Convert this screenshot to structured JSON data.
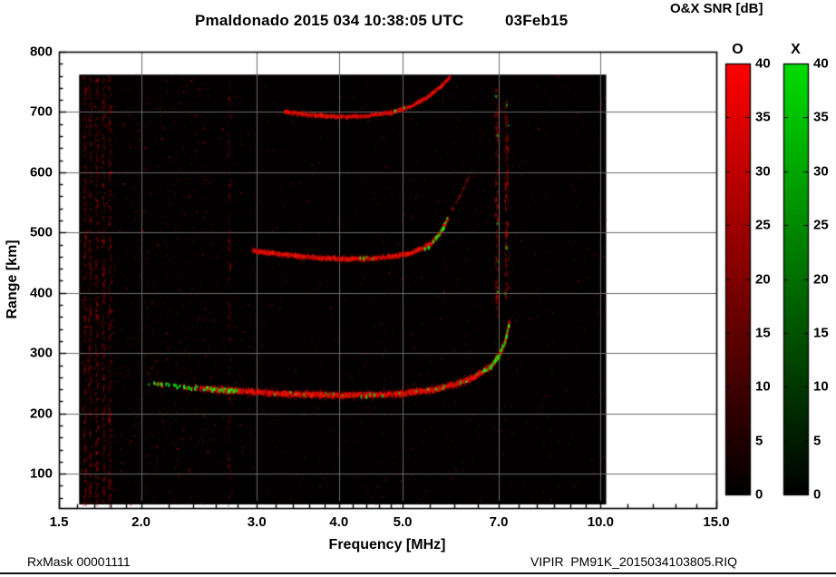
{
  "footer": {
    "left": "RxMask 00001111",
    "right": "VIPIR  PM91K_2015034103805.RIQ"
  },
  "chart_data": {
    "type": "heatmap",
    "title": "Pmaldonado 2015 034 10:38:05 UTC",
    "date_label": "03Feb15",
    "xlabel": "Frequency [MHz]",
    "ylabel": "Range [km]",
    "x_scale": "log",
    "xlim": [
      1.5,
      15.0
    ],
    "ylim": [
      43,
      800
    ],
    "x_ticks": [
      1.5,
      2.0,
      3.0,
      4.0,
      5.0,
      7.0,
      10.0,
      15.0
    ],
    "x_tick_labels": [
      "1.5",
      "2.0",
      "3.0",
      "4.0",
      "5.0",
      "7.0",
      "10.0",
      "15.0"
    ],
    "x_minor_ticks": [
      1.6,
      1.7,
      1.8,
      1.9,
      2.2,
      2.4,
      2.6,
      2.8,
      3.2,
      3.4,
      3.6,
      3.8,
      4.2,
      4.4,
      4.6,
      4.8,
      5.5,
      6.0,
      6.5,
      7.5,
      8.0,
      8.5,
      9.0,
      9.5,
      11.0,
      12.0,
      13.0,
      14.0
    ],
    "y_ticks": [
      100,
      200,
      300,
      400,
      500,
      600,
      700,
      800
    ],
    "grid": true,
    "plot_background": "#020000",
    "data_extent": {
      "freq_mhz": [
        1.61,
        10.2
      ],
      "range_km": [
        49,
        762
      ]
    },
    "colorbar": {
      "title": "O&X SNR [dB]",
      "min": 0,
      "max": 40,
      "ticks": [
        0,
        5,
        10,
        15,
        20,
        25,
        30,
        35,
        40
      ],
      "bars": [
        {
          "label": "O",
          "mode": "ordinary",
          "bottom_color": "#000000",
          "top_color": "#ff0000"
        },
        {
          "label": "X",
          "mode": "extraordinary",
          "bottom_color": "#000000",
          "top_color": "#00dd00"
        }
      ]
    },
    "traces": [
      {
        "name": "F-layer 1-hop echo",
        "approx_snr_db": 35,
        "points": [
          [
            2.05,
            250
          ],
          [
            2.4,
            242
          ],
          [
            2.9,
            236
          ],
          [
            3.4,
            232
          ],
          [
            4.0,
            230
          ],
          [
            4.6,
            231
          ],
          [
            5.1,
            234
          ],
          [
            5.6,
            240
          ],
          [
            6.0,
            248
          ],
          [
            6.4,
            260
          ],
          [
            6.8,
            278
          ],
          [
            7.0,
            297
          ],
          [
            7.15,
            320
          ],
          [
            7.25,
            352
          ]
        ]
      },
      {
        "name": "F-layer 2-hop echo",
        "approx_snr_db": 30,
        "points": [
          [
            2.95,
            470
          ],
          [
            3.3,
            463
          ],
          [
            3.7,
            458
          ],
          [
            4.1,
            456
          ],
          [
            4.5,
            457
          ],
          [
            4.9,
            461
          ],
          [
            5.2,
            468
          ],
          [
            5.5,
            480
          ],
          [
            5.7,
            500
          ],
          [
            5.85,
            525
          ]
        ]
      },
      {
        "name": "F-layer 3-hop echo",
        "approx_snr_db": 25,
        "points": [
          [
            3.3,
            700
          ],
          [
            3.6,
            695
          ],
          [
            4.0,
            692
          ],
          [
            4.4,
            693
          ],
          [
            4.8,
            699
          ],
          [
            5.1,
            708
          ],
          [
            5.4,
            722
          ],
          [
            5.7,
            742
          ],
          [
            5.9,
            758
          ]
        ]
      },
      {
        "name": "faint echo above 2-hop cusp",
        "approx_snr_db": 8,
        "points": [
          [
            5.9,
            535
          ],
          [
            6.1,
            560
          ],
          [
            6.3,
            595
          ]
        ]
      }
    ],
    "critical_frequency_mhz": 7.3,
    "rfi_columns_mhz": [
      1.64,
      1.67,
      1.71,
      1.75,
      1.79,
      2.72
    ],
    "spread_streaks": [
      {
        "freq_mhz": 6.95,
        "range_km": [
          360,
          750
        ]
      },
      {
        "freq_mhz": 7.18,
        "range_km": [
          390,
          730
        ]
      }
    ],
    "green_segments": [
      {
        "trace": 0,
        "freq_range": [
          2.0,
          2.8
        ],
        "density": "dense"
      },
      {
        "trace": 0,
        "freq_range": [
          3.0,
          6.5
        ],
        "density": "sparse"
      },
      {
        "trace": 0,
        "freq_range": [
          6.55,
          7.3
        ],
        "density": "dense"
      },
      {
        "trace": 1,
        "freq_range": [
          4.2,
          4.7
        ],
        "density": "sparse"
      },
      {
        "trace": 1,
        "freq_range": [
          5.35,
          5.9
        ],
        "density": "dense"
      },
      {
        "trace": 2,
        "freq_range": [
          4.8,
          5.3
        ],
        "density": "sparse"
      }
    ]
  }
}
